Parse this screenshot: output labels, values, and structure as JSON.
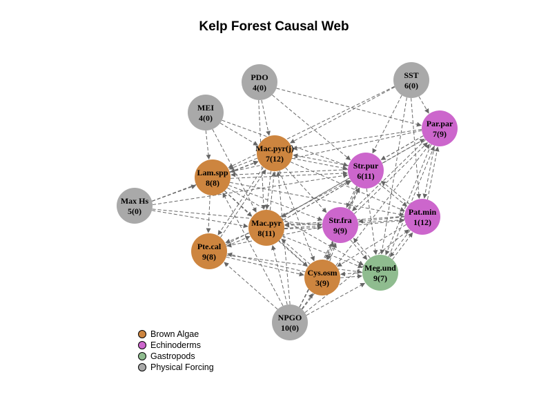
{
  "title": "Kelp Forest Causal Web",
  "colors": {
    "brown_algae": "#CD853F",
    "echinoderms": "#CC66CC",
    "gastropods": "#8FBC8F",
    "physical": "#A9A9A9",
    "edge": "#666666"
  },
  "legend": [
    {
      "label": "Brown Algae",
      "group": "brown_algae"
    },
    {
      "label": "Echinoderms",
      "group": "echinoderms"
    },
    {
      "label": "Gastropods",
      "group": "gastropods"
    },
    {
      "label": "Physical Forcing",
      "group": "physical"
    }
  ],
  "nodes": [
    {
      "id": "PDO",
      "line1": "PDO",
      "line2": "4(0)",
      "group": "physical"
    },
    {
      "id": "SST",
      "line1": "SST",
      "line2": "6(0)",
      "group": "physical"
    },
    {
      "id": "MEI",
      "line1": "MEI",
      "line2": "4(0)",
      "group": "physical"
    },
    {
      "id": "MaxHs",
      "line1": "Max Hs",
      "line2": "5(0)",
      "group": "physical"
    },
    {
      "id": "NPGO",
      "line1": "NPGO",
      "line2": "10(0)",
      "group": "physical"
    },
    {
      "id": "MacJ",
      "line1": "Mac.pyr(j)",
      "line2": "7(12)",
      "group": "brown_algae"
    },
    {
      "id": "Lam",
      "line1": "Lam.spp",
      "line2": "8(8)",
      "group": "brown_algae"
    },
    {
      "id": "Mac",
      "line1": "Mac.pyr",
      "line2": "8(11)",
      "group": "brown_algae"
    },
    {
      "id": "Pte",
      "line1": "Pte.cal",
      "line2": "9(8)",
      "group": "brown_algae"
    },
    {
      "id": "Cys",
      "line1": "Cys.osm",
      "line2": "3(9)",
      "group": "brown_algae"
    },
    {
      "id": "StrP",
      "line1": "Str.pur",
      "line2": "6(11)",
      "group": "echinoderms"
    },
    {
      "id": "StrF",
      "line1": "Str.fra",
      "line2": "9(9)",
      "group": "echinoderms"
    },
    {
      "id": "Par",
      "line1": "Par.par",
      "line2": "7(9)",
      "group": "echinoderms"
    },
    {
      "id": "Pat",
      "line1": "Pat.min",
      "line2": "1(12)",
      "group": "echinoderms"
    },
    {
      "id": "Meg",
      "line1": "Meg.und",
      "line2": "9(7)",
      "group": "gastropods"
    }
  ],
  "edges": [
    [
      "PDO",
      "MacJ"
    ],
    [
      "PDO",
      "Mac"
    ],
    [
      "PDO",
      "StrP"
    ],
    [
      "PDO",
      "Par"
    ],
    [
      "SST",
      "Par"
    ],
    [
      "SST",
      "MacJ"
    ],
    [
      "SST",
      "Lam"
    ],
    [
      "SST",
      "StrP"
    ],
    [
      "SST",
      "Pat"
    ],
    [
      "SST",
      "Meg"
    ],
    [
      "MEI",
      "MacJ"
    ],
    [
      "MEI",
      "Lam"
    ],
    [
      "MEI",
      "Mac"
    ],
    [
      "MEI",
      "StrP"
    ],
    [
      "MaxHs",
      "Lam"
    ],
    [
      "MaxHs",
      "MacJ"
    ],
    [
      "MaxHs",
      "Mac"
    ],
    [
      "MaxHs",
      "StrF"
    ],
    [
      "MaxHs",
      "StrP"
    ],
    [
      "NPGO",
      "Pte"
    ],
    [
      "NPGO",
      "Mac"
    ],
    [
      "NPGO",
      "Cys"
    ],
    [
      "NPGO",
      "Meg"
    ],
    [
      "NPGO",
      "StrF"
    ],
    [
      "NPGO",
      "Lam"
    ],
    [
      "NPGO",
      "Pat"
    ],
    [
      "NPGO",
      "Par"
    ],
    [
      "NPGO",
      "MacJ"
    ],
    [
      "NPGO",
      "StrP"
    ],
    [
      "MacJ",
      "Lam"
    ],
    [
      "MacJ",
      "Mac"
    ],
    [
      "MacJ",
      "Pte"
    ],
    [
      "MacJ",
      "StrP"
    ],
    [
      "MacJ",
      "StrF"
    ],
    [
      "MacJ",
      "Cys"
    ],
    [
      "MacJ",
      "Pat"
    ],
    [
      "Lam",
      "MacJ"
    ],
    [
      "Lam",
      "Mac"
    ],
    [
      "Lam",
      "Pte"
    ],
    [
      "Lam",
      "StrP"
    ],
    [
      "Lam",
      "StrF"
    ],
    [
      "Lam",
      "Cys"
    ],
    [
      "Lam",
      "Pat"
    ],
    [
      "Lam",
      "Meg"
    ],
    [
      "Mac",
      "MacJ"
    ],
    [
      "Mac",
      "Pte"
    ],
    [
      "Mac",
      "Cys"
    ],
    [
      "Mac",
      "StrF"
    ],
    [
      "Mac",
      "StrP"
    ],
    [
      "Mac",
      "Meg"
    ],
    [
      "Mac",
      "Pat"
    ],
    [
      "Mac",
      "Par"
    ],
    [
      "Pte",
      "Mac"
    ],
    [
      "Pte",
      "Cys"
    ],
    [
      "Pte",
      "Meg"
    ],
    [
      "Pte",
      "StrP"
    ],
    [
      "Pte",
      "MacJ"
    ],
    [
      "Cys",
      "Mac"
    ],
    [
      "Cys",
      "Pte"
    ],
    [
      "Cys",
      "StrF"
    ],
    [
      "Cys",
      "Meg"
    ],
    [
      "StrP",
      "MacJ"
    ],
    [
      "StrP",
      "Par"
    ],
    [
      "StrP",
      "Pat"
    ],
    [
      "StrP",
      "Mac"
    ],
    [
      "StrP",
      "Lam"
    ],
    [
      "StrP",
      "StrF"
    ],
    [
      "StrP",
      "Meg"
    ],
    [
      "StrP",
      "Cys"
    ],
    [
      "StrF",
      "StrP"
    ],
    [
      "StrF",
      "Pat"
    ],
    [
      "StrF",
      "Mac"
    ],
    [
      "StrF",
      "Meg"
    ],
    [
      "StrF",
      "Par"
    ],
    [
      "StrF",
      "Pte"
    ],
    [
      "StrF",
      "Cys"
    ],
    [
      "Par",
      "MacJ"
    ],
    [
      "Par",
      "StrP"
    ],
    [
      "Par",
      "Pat"
    ],
    [
      "Par",
      "StrF"
    ],
    [
      "Par",
      "Meg"
    ],
    [
      "Par",
      "Lam"
    ],
    [
      "Par",
      "Mac"
    ],
    [
      "Pat",
      "Par"
    ],
    [
      "Pat",
      "StrF"
    ],
    [
      "Pat",
      "StrP"
    ],
    [
      "Pat",
      "Meg"
    ],
    [
      "Pat",
      "Mac"
    ],
    [
      "Pat",
      "Cys"
    ],
    [
      "Meg",
      "Pat"
    ],
    [
      "Meg",
      "StrF"
    ],
    [
      "Meg",
      "Cys"
    ],
    [
      "Meg",
      "Par"
    ]
  ]
}
